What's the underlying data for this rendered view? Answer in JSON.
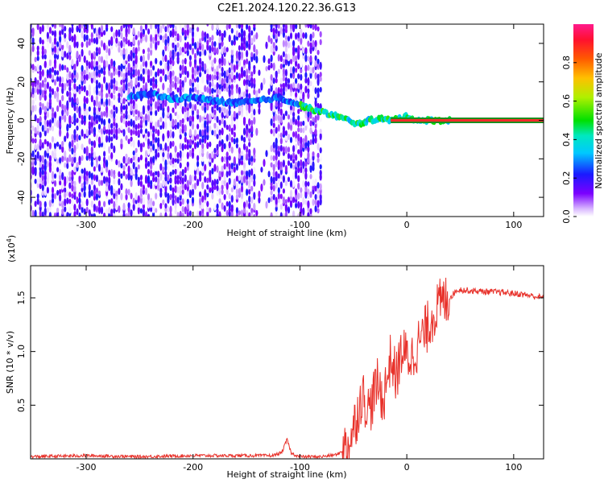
{
  "title": "C2E1.2024.120.22.36.G13",
  "chart_data": [
    {
      "type": "heatmap",
      "xlabel": "Height of straight line (km)",
      "ylabel": "Frequency (Hz)",
      "xlim": [
        -352,
        128
      ],
      "ylim": [
        -50,
        50
      ],
      "xticks": [
        -300,
        -200,
        -100,
        0,
        100
      ],
      "yticks": [
        -40,
        -20,
        0,
        20,
        40
      ],
      "colorbar": {
        "label": "Normalized spectral amplitude",
        "range": [
          0,
          1
        ],
        "ticks": [
          "0.0",
          "0.2",
          "0.4",
          "0.6",
          "0.8"
        ],
        "tick_values": [
          0,
          0.2,
          0.4,
          0.6,
          0.8
        ]
      },
      "ridge": {
        "x": [
          -260,
          -240,
          -220,
          -200,
          -180,
          -160,
          -140,
          -120,
          -100,
          -85,
          -70,
          -55,
          -45,
          -35,
          -25,
          -15,
          0,
          10,
          128
        ],
        "y": [
          12,
          14,
          11,
          12,
          10,
          9,
          10,
          12,
          8,
          5,
          3,
          0,
          -2,
          0,
          1,
          0,
          2,
          0,
          0
        ]
      },
      "noise_region_x": [
        -352,
        -80
      ],
      "constant_band": {
        "x": [
          -15,
          128
        ],
        "y": 0
      }
    },
    {
      "type": "line",
      "xlabel": "Height of straight line (km)",
      "ylabel": "SNR (10 * v/v)",
      "yscale_label": "(x10",
      "yscale_exp": "4",
      "yscale_close": ")",
      "xlim": [
        -352,
        128
      ],
      "ylim": [
        0,
        1.8
      ],
      "xticks": [
        -300,
        -200,
        -100,
        0,
        100
      ],
      "yticks": [
        0.5,
        1.0,
        1.5
      ],
      "ytick_labels": [
        "0.5",
        "1.0",
        "1.5"
      ],
      "series": [
        {
          "color": "#e8312a",
          "x": [
            -352,
            -300,
            -250,
            -200,
            -150,
            -125,
            -117,
            -112,
            -108,
            -100,
            -80,
            -65,
            -55,
            -48,
            -42,
            -35,
            -28,
            -22,
            -15,
            -10,
            -5,
            0,
            5,
            12,
            18,
            25,
            32,
            40,
            48,
            55,
            70,
            90,
            110,
            128
          ],
          "y": [
            0.02,
            0.03,
            0.02,
            0.03,
            0.03,
            0.03,
            0.06,
            0.18,
            0.05,
            0.02,
            0.02,
            0.04,
            0.12,
            0.35,
            0.6,
            0.45,
            0.7,
            0.55,
            0.95,
            0.75,
            1.0,
            0.95,
            0.95,
            1.1,
            1.2,
            1.35,
            1.45,
            1.5,
            1.58,
            1.57,
            1.56,
            1.55,
            1.53,
            1.5
          ]
        }
      ]
    }
  ]
}
